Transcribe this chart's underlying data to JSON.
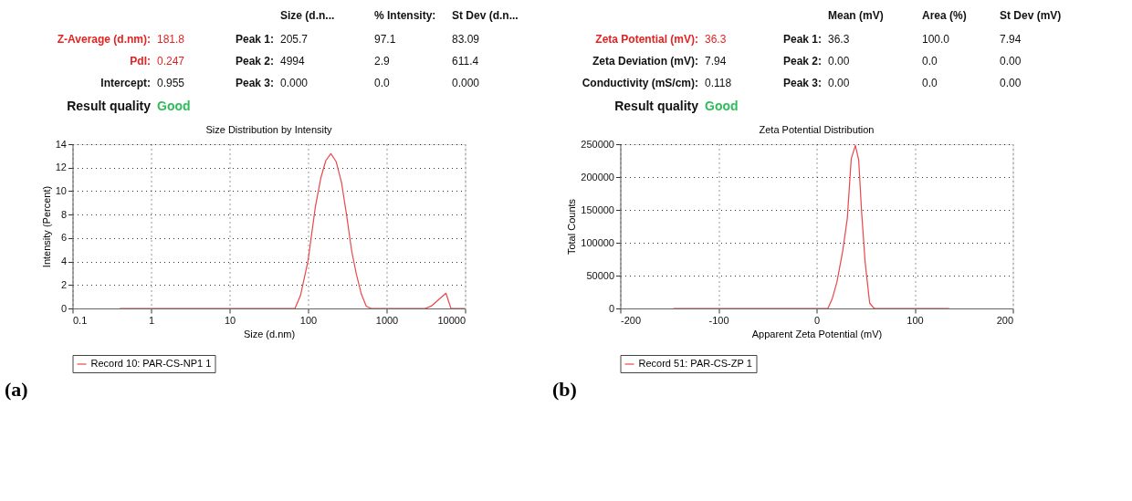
{
  "chart_data": [
    {
      "type": "line",
      "title": "Size Distribution by Intensity",
      "xlabel": "Size (d.nm)",
      "ylabel": "Intensity (Percent)",
      "log": "x",
      "xlim": [
        0.1,
        10000
      ],
      "xticks": [
        0.1,
        1,
        10,
        100,
        1000,
        10000
      ],
      "ylim": [
        0,
        14
      ],
      "yticks": [
        0,
        2,
        4,
        6,
        8,
        10,
        12,
        14
      ],
      "grid": true,
      "legend": "bottom",
      "marker": "none",
      "line_style": "solid",
      "annotations": [
        "Size (d.n...",
        "% Intensity:",
        "St Dev (d.n...",
        "Z-Average (d.nm):",
        "181.8",
        "Peak 1:",
        "205.7",
        "97.1",
        "83.09",
        "PdI:",
        "0.247",
        "Peak 2:",
        "4994",
        "2.9",
        "611.4",
        "Intercept:",
        "0.955",
        "Peak 3:",
        "0.000",
        "0.0",
        "0.000",
        "Result quality",
        "Good",
        "(a)"
      ],
      "series": [
        {
          "name": "Record 10: PAR-CS-NP1 1",
          "color": "#e8474b",
          "x": [
            0.4,
            68,
            80,
            100,
            124,
            145,
            168,
            195,
            228,
            267,
            310,
            359,
            412,
            478,
            550,
            633,
            3100,
            3700,
            5700,
            6600,
            10000
          ],
          "values": [
            0,
            0,
            1.1,
            4.1,
            8.7,
            11.1,
            12.6,
            13.2,
            12.5,
            10.7,
            7.9,
            4.9,
            2.9,
            1.2,
            0.2,
            0,
            0,
            0.2,
            1.3,
            0,
            0
          ]
        }
      ]
    },
    {
      "type": "line",
      "title": "Zeta Potential Distribution",
      "xlabel": "Apparent Zeta Potential (mV)",
      "ylabel": "Total Counts",
      "xlim": [
        -200,
        200
      ],
      "xticks": [
        -200,
        -100,
        0,
        100,
        200
      ],
      "ylim": [
        0,
        250000
      ],
      "yticks": [
        0,
        50000,
        100000,
        150000,
        200000,
        250000
      ],
      "grid": true,
      "legend": "bottom",
      "marker": "none",
      "line_style": "solid",
      "annotations": [
        "Mean (mV)",
        "Area (%)",
        "St Dev (mV)",
        "Zeta Potential (mV):",
        "36.3",
        "Peak 1:",
        "36.3",
        "100.0",
        "7.94",
        "Zeta Deviation (mV):",
        "7.94",
        "Peak 2:",
        "0.00",
        "0.0",
        "0.00",
        "Conductivity (mS/cm):",
        "0.118",
        "Peak 3:",
        "0.00",
        "0.0",
        "0.00",
        "Result quality",
        "Good",
        "(b)"
      ],
      "series": [
        {
          "name": "Record 51: PAR-CS-ZP 1",
          "color": "#e8474b",
          "x": [
            -146,
            11.5,
            16,
            20.7,
            26.7,
            31.3,
            35.3,
            39.5,
            42.9,
            45.9,
            49.5,
            54.1,
            58.7,
            135
          ],
          "values": [
            0,
            0,
            15000,
            40000,
            88000,
            137000,
            228000,
            248000,
            226000,
            146000,
            70000,
            8000,
            0,
            0
          ]
        }
      ]
    }
  ]
}
